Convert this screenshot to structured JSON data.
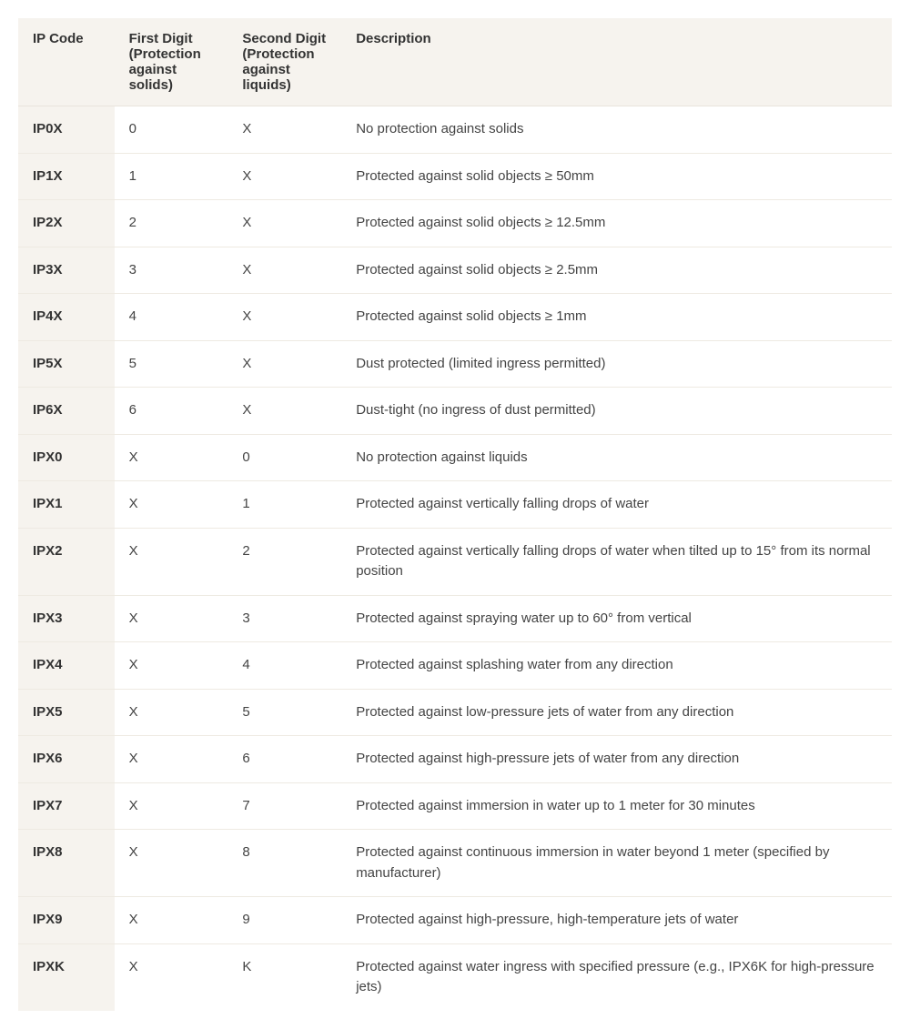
{
  "table": {
    "type": "table",
    "background_color": "#ffffff",
    "header_background_color": "#f6f3ee",
    "first_column_background_color": "#f6f3ee",
    "border_color": "#eeeae2",
    "header_border_color": "#e8e4dc",
    "text_color": "#444444",
    "header_text_color": "#333333",
    "font_family": "Segoe UI",
    "header_fontsize": 15,
    "body_fontsize": 15,
    "header_fontweight": 600,
    "first_column_fontweight": 600,
    "cell_padding": "14px 16px",
    "column_widths": [
      "11%",
      "13%",
      "13%",
      "63%"
    ],
    "columns": [
      "IP Code",
      "First Digit (Protection against solids)",
      "Second Digit (Protection against liquids)",
      "Description"
    ],
    "rows": [
      [
        "IP0X",
        "0",
        "X",
        "No protection against solids"
      ],
      [
        "IP1X",
        "1",
        "X",
        "Protected against solid objects ≥ 50mm"
      ],
      [
        "IP2X",
        "2",
        "X",
        "Protected against solid objects ≥ 12.5mm"
      ],
      [
        "IP3X",
        "3",
        "X",
        "Protected against solid objects ≥ 2.5mm"
      ],
      [
        "IP4X",
        "4",
        "X",
        "Protected against solid objects ≥ 1mm"
      ],
      [
        "IP5X",
        "5",
        "X",
        "Dust protected (limited ingress permitted)"
      ],
      [
        "IP6X",
        "6",
        "X",
        "Dust-tight (no ingress of dust permitted)"
      ],
      [
        "IPX0",
        "X",
        "0",
        "No protection against liquids"
      ],
      [
        "IPX1",
        "X",
        "1",
        "Protected against vertically falling drops of water"
      ],
      [
        "IPX2",
        "X",
        "2",
        "Protected against vertically falling drops of water when tilted up to 15° from its normal position"
      ],
      [
        "IPX3",
        "X",
        "3",
        "Protected against spraying water up to 60° from vertical"
      ],
      [
        "IPX4",
        "X",
        "4",
        "Protected against splashing water from any direction"
      ],
      [
        "IPX5",
        "X",
        "5",
        "Protected against low-pressure jets of water from any direction"
      ],
      [
        "IPX6",
        "X",
        "6",
        "Protected against high-pressure jets of water from any direction"
      ],
      [
        "IPX7",
        "X",
        "7",
        "Protected against immersion in water up to 1 meter for 30 minutes"
      ],
      [
        "IPX8",
        "X",
        "8",
        "Protected against continuous immersion in water beyond 1 meter (specified by manufacturer)"
      ],
      [
        "IPX9",
        "X",
        "9",
        "Protected against high-pressure, high-temperature jets of water"
      ],
      [
        "IPXK",
        "X",
        "K",
        "Protected against water ingress with specified pressure (e.g., IPX6K for high-pressure jets)"
      ]
    ]
  }
}
